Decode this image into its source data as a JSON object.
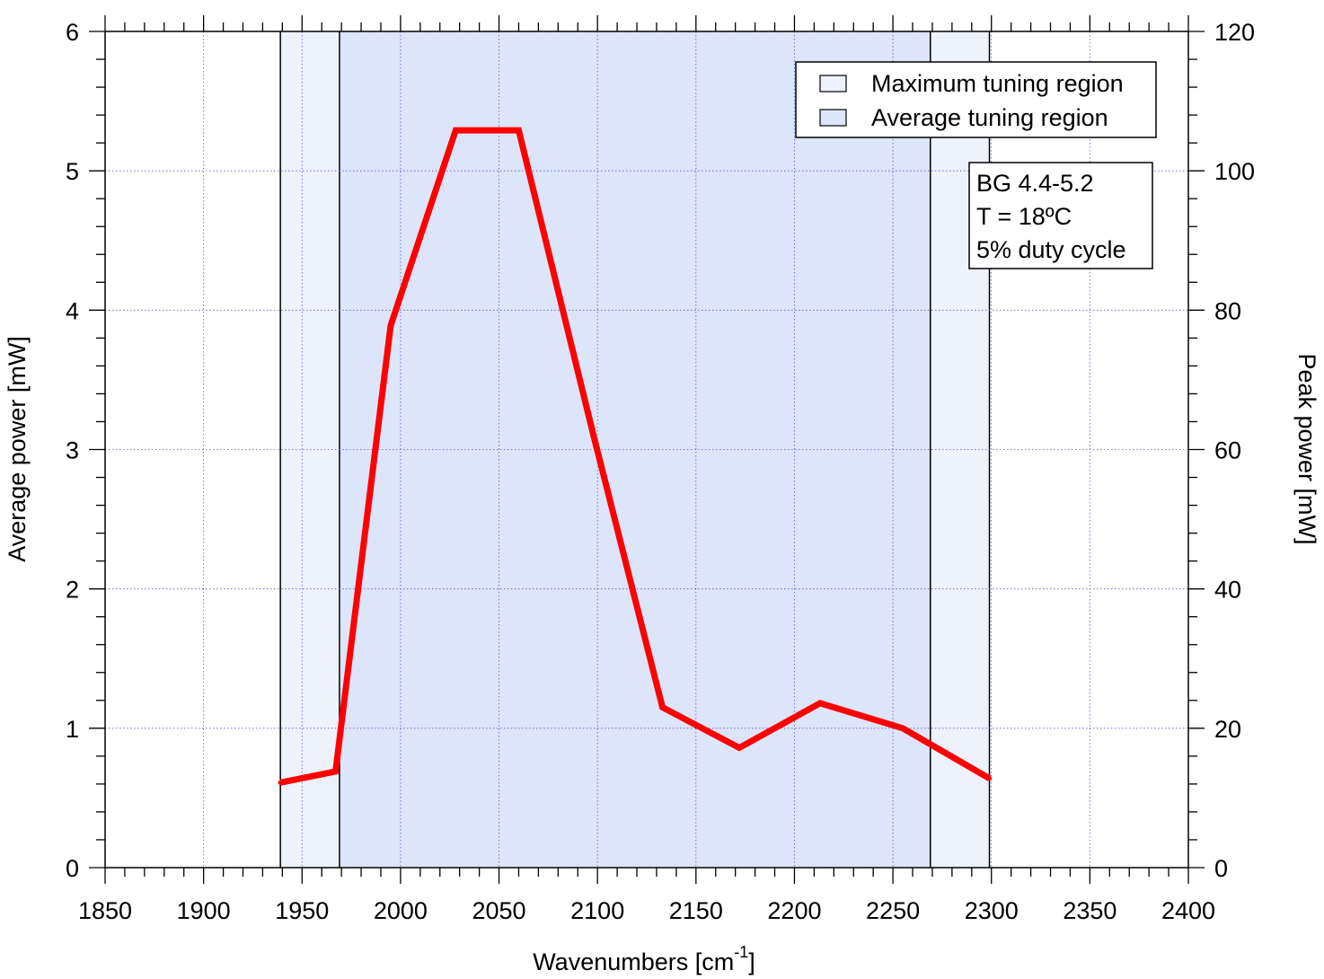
{
  "chart_data": {
    "type": "line",
    "title": "",
    "xlabel": "Wavenumbers [cm",
    "xlabel_sup": "-1",
    "xlabel_end": "]",
    "ylabel": "Average power [mW]",
    "y2label": "Peak power [mW]",
    "xlim": [
      1850,
      2400
    ],
    "ylim": [
      0,
      6
    ],
    "y2lim": [
      0,
      120
    ],
    "x_ticks": [
      "1850",
      "1900",
      "1950",
      "2000",
      "2050",
      "2100",
      "2150",
      "2200",
      "2250",
      "2300",
      "2350",
      "2400"
    ],
    "y_ticks": [
      "0",
      "1",
      "2",
      "3",
      "4",
      "5",
      "6"
    ],
    "y2_ticks": [
      "0",
      "20",
      "40",
      "60",
      "80",
      "100",
      "120"
    ],
    "grid": true,
    "series": [
      {
        "x": [
          1939,
          1967,
          1995,
          2028,
          2060,
          2098,
          2133,
          2172,
          2213,
          2255,
          2299
        ],
        "y": [
          0.61,
          0.69,
          3.89,
          5.29,
          5.29,
          3.1,
          1.15,
          0.86,
          1.18,
          1.0,
          0.64
        ],
        "color": "#ff0000"
      }
    ],
    "regions": [
      {
        "name": "Maximum tuning region",
        "x": [
          1939,
          2299
        ],
        "color": "#eef2fd"
      },
      {
        "name": "Average tuning region",
        "x": [
          1969,
          2269
        ],
        "color": "#dde5fa"
      }
    ],
    "legend": {
      "position": "top-right",
      "entries": [
        "Maximum tuning region",
        "Average tuning region"
      ]
    },
    "annotation": {
      "position": "top-right",
      "lines": [
        "BG 4.4-5.2",
        "T = 18ºC",
        "5% duty cycle"
      ]
    }
  }
}
